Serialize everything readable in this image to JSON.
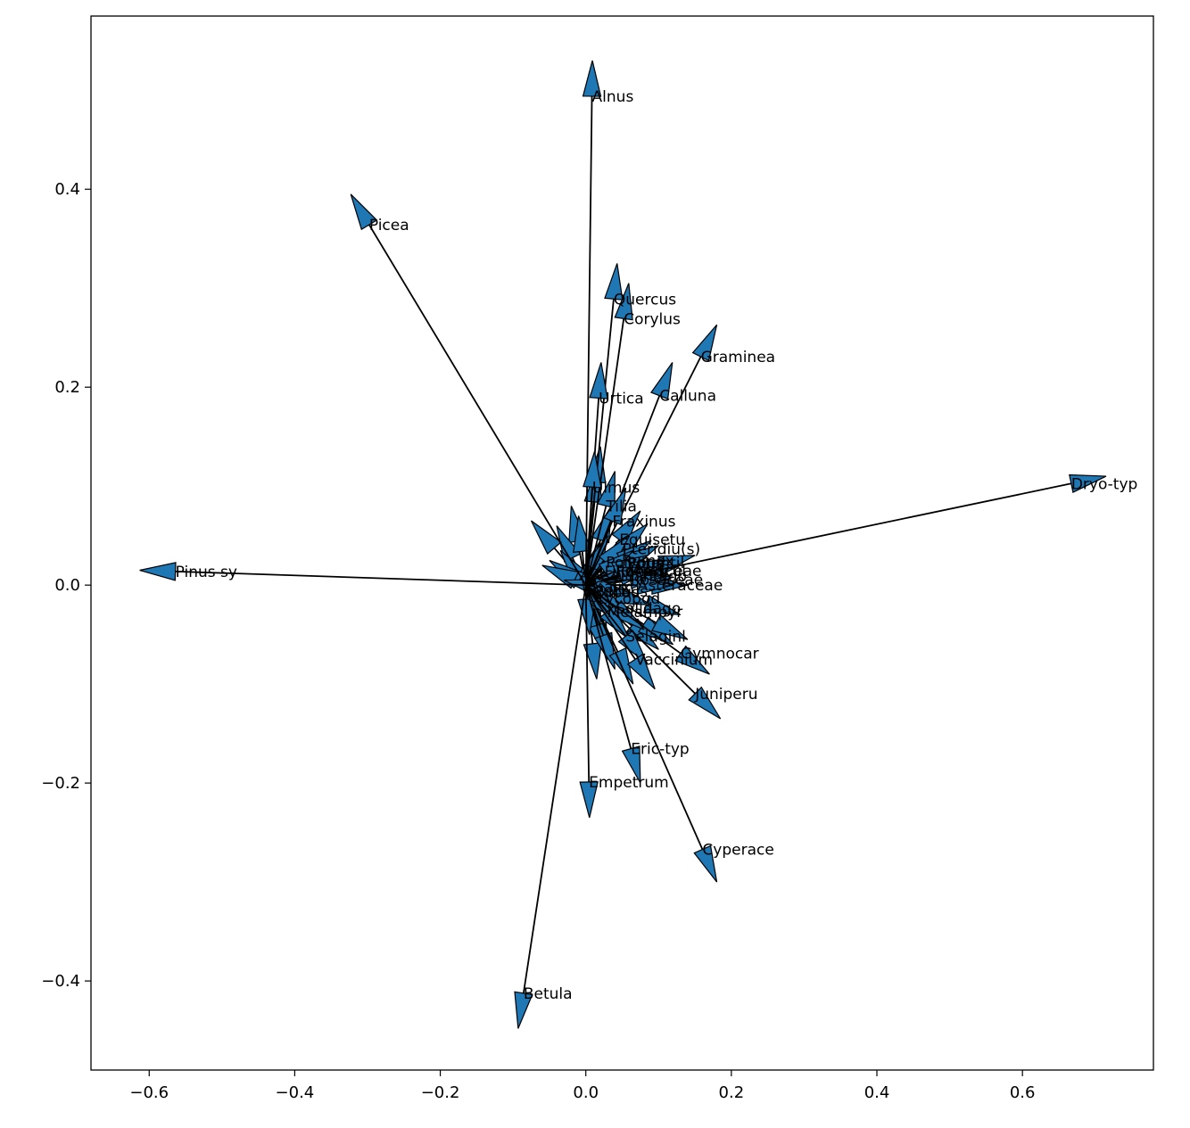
{
  "chart_data": {
    "type": "biplot-arrows",
    "title": "",
    "xlabel": "",
    "ylabel": "",
    "xlim": [
      -0.68,
      0.78
    ],
    "ylim": [
      -0.49,
      0.575
    ],
    "xticks": [
      -0.6,
      -0.4,
      -0.2,
      0.0,
      0.2,
      0.4,
      0.6
    ],
    "yticks": [
      -0.4,
      -0.2,
      0.0,
      0.2,
      0.4
    ],
    "xtick_labels": [
      "−0.6",
      "−0.4",
      "−0.2",
      "0.0",
      "0.2",
      "0.4",
      "0.6"
    ],
    "ytick_labels": [
      "−0.4",
      "−0.2",
      "0.0",
      "0.2",
      "0.4"
    ],
    "arrow_color": "#1f77b4",
    "edge_color": "#000000",
    "labeled_arrows": [
      {
        "label": "Alnus",
        "x": 0.009,
        "y": 0.53
      },
      {
        "label": "Picea",
        "x": -0.323,
        "y": 0.395
      },
      {
        "label": "Quercus",
        "x": 0.043,
        "y": 0.325
      },
      {
        "label": "Corylus",
        "x": 0.059,
        "y": 0.305
      },
      {
        "label": "Graminea",
        "x": 0.18,
        "y": 0.263
      },
      {
        "label": "Calluna",
        "x": 0.119,
        "y": 0.225
      },
      {
        "label": "Urtica",
        "x": 0.021,
        "y": 0.225
      },
      {
        "label": "Dryo-typ",
        "x": 0.715,
        "y": 0.11
      },
      {
        "label": "Pinus sy",
        "x": -0.613,
        "y": 0.015
      },
      {
        "label": "Ulmus",
        "x": 0.012,
        "y": 0.135
      },
      {
        "label": "Tilia",
        "x": 0.04,
        "y": 0.115
      },
      {
        "label": "Fraxinus",
        "x": 0.055,
        "y": 0.098
      },
      {
        "label": "Equisetu",
        "x": 0.075,
        "y": 0.075
      },
      {
        "label": "Pteridiu(s)",
        "x": 0.085,
        "y": 0.062
      },
      {
        "label": "Polypod",
        "x": 0.06,
        "y": 0.05
      },
      {
        "label": "Rumex",
        "x": 0.09,
        "y": 0.045
      },
      {
        "label": "Potentil",
        "x": 0.1,
        "y": 0.04
      },
      {
        "label": "Filipend",
        "x": 0.065,
        "y": 0.035
      },
      {
        "label": "Ranuncul",
        "x": 0.085,
        "y": 0.03
      },
      {
        "label": "Apiaceae",
        "x": 0.11,
        "y": 0.025
      },
      {
        "label": "Plantago",
        "x": 0.095,
        "y": 0.018
      },
      {
        "label": "Rosaceae",
        "x": 0.11,
        "y": 0.01
      },
      {
        "label": "Asteraceae",
        "x": 0.12,
        "y": 0.0
      },
      {
        "label": "Salix",
        "x": 0.06,
        "y": -0.008
      },
      {
        "label": "Sorbus",
        "x": 0.055,
        "y": -0.025
      },
      {
        "label": "Rubus",
        "x": 0.045,
        "y": -0.032
      },
      {
        "label": "Lycopod",
        "x": 0.05,
        "y": -0.04
      },
      {
        "label": "Solidago",
        "x": 0.08,
        "y": -0.045
      },
      {
        "label": "Melampyr",
        "x": 0.06,
        "y": -0.055
      },
      {
        "label": "Gymnocar",
        "x": 0.17,
        "y": -0.09
      },
      {
        "label": "Selaginl",
        "x": 0.085,
        "y": -0.08
      },
      {
        "label": "Vaccinium",
        "x": 0.095,
        "y": -0.105
      },
      {
        "label": "Juniperu",
        "x": 0.185,
        "y": -0.135
      },
      {
        "label": "Eric-typ",
        "x": 0.075,
        "y": -0.2
      },
      {
        "label": "Empetrum",
        "x": 0.005,
        "y": -0.235
      },
      {
        "label": "Cyperace",
        "x": 0.18,
        "y": -0.3
      },
      {
        "label": "Betula",
        "x": -0.093,
        "y": -0.448
      }
    ],
    "cluster_arrows": [
      {
        "x": 0.02,
        "y": 0.14
      },
      {
        "x": 0.015,
        "y": 0.12
      },
      {
        "x": -0.02,
        "y": 0.08
      },
      {
        "x": -0.04,
        "y": 0.06
      },
      {
        "x": -0.075,
        "y": 0.065
      },
      {
        "x": -0.035,
        "y": 0.035
      },
      {
        "x": -0.05,
        "y": 0.025
      },
      {
        "x": -0.06,
        "y": 0.02
      },
      {
        "x": -0.03,
        "y": 0.005
      },
      {
        "x": 0.02,
        "y": 0.045
      },
      {
        "x": 0.035,
        "y": 0.08
      },
      {
        "x": 0.02,
        "y": -0.06
      },
      {
        "x": 0.015,
        "y": -0.095
      },
      {
        "x": 0.03,
        "y": -0.075
      },
      {
        "x": 0.04,
        "y": -0.085
      },
      {
        "x": 0.065,
        "y": -0.1
      },
      {
        "x": 0.1,
        "y": -0.065
      },
      {
        "x": 0.12,
        "y": -0.06
      },
      {
        "x": 0.14,
        "y": -0.055
      },
      {
        "x": 0.13,
        "y": -0.03
      },
      {
        "x": 0.15,
        "y": 0.03
      },
      {
        "x": 0.13,
        "y": 0.02
      },
      {
        "x": 0.12,
        "y": 0.008
      },
      {
        "x": 0.09,
        "y": -0.02
      },
      {
        "x": 0.14,
        "y": 0.0
      },
      {
        "x": -0.01,
        "y": 0.07
      },
      {
        "x": 0.005,
        "y": -0.05
      },
      {
        "x": 0.03,
        "y": 0.05
      },
      {
        "x": 0.07,
        "y": 0.015
      },
      {
        "x": 0.045,
        "y": 0.005
      }
    ]
  }
}
